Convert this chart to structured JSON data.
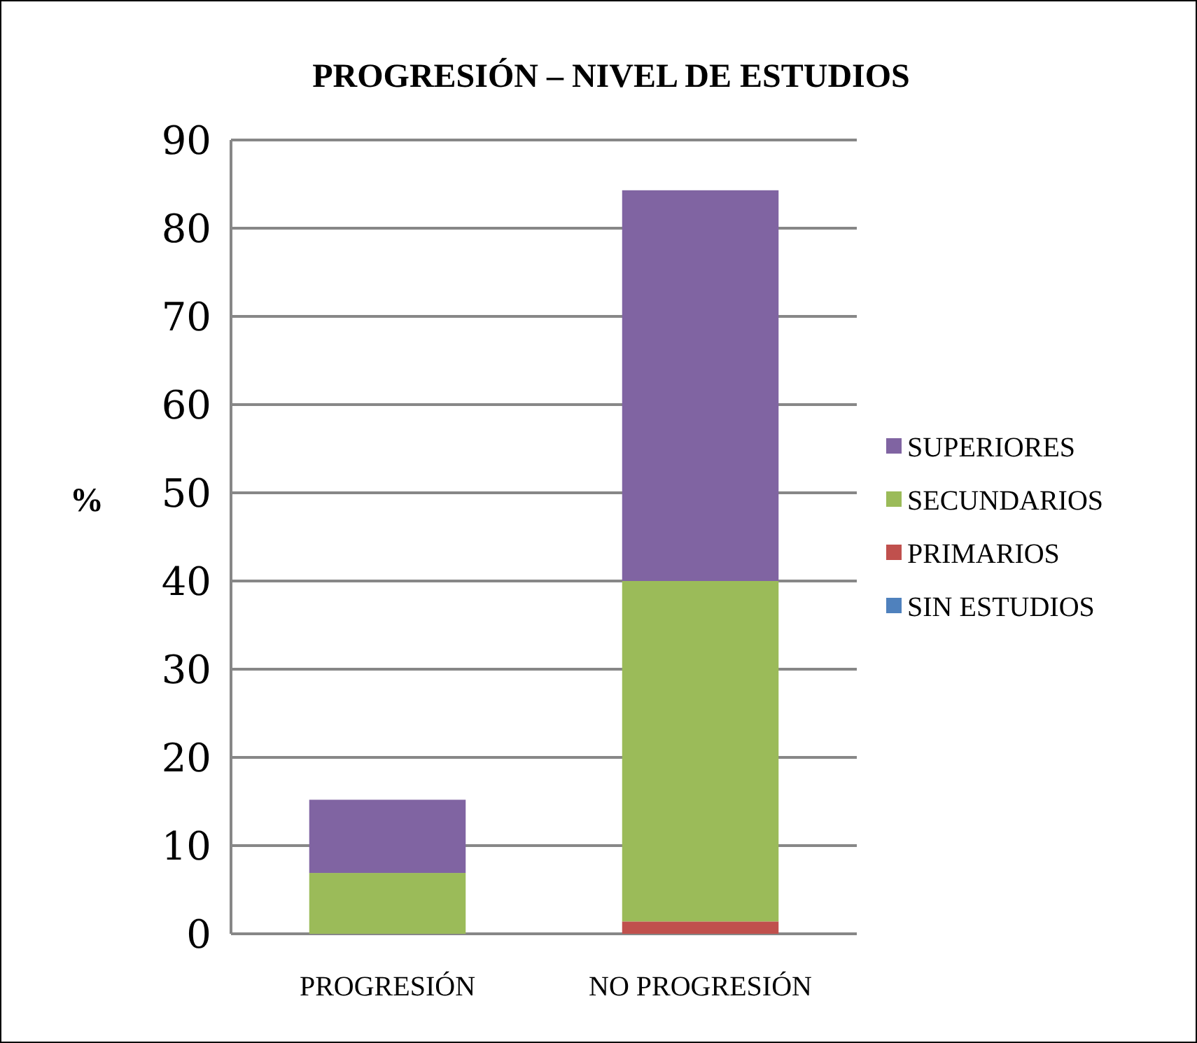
{
  "chart_data": {
    "type": "bar",
    "title": "PROGRESIÓN – NIVEL DE ESTUDIOS",
    "ylabel": "%",
    "categories": [
      "PROGRESIÓN",
      "NO PROGRESIÓN"
    ],
    "stacked": true,
    "series": [
      {
        "name": "SIN ESTUDIOS",
        "color": "#4f81bd",
        "values": [
          0,
          0
        ]
      },
      {
        "name": "PRIMARIOS",
        "color": "#c0504d",
        "values": [
          0,
          1.4
        ]
      },
      {
        "name": "SECUNDARIOS",
        "color": "#9bbb59",
        "values": [
          6.9,
          38.6
        ]
      },
      {
        "name": "SUPERIORES",
        "color": "#8064a2",
        "values": [
          8.3,
          44.3
        ]
      }
    ],
    "ylim": [
      0,
      90
    ],
    "yticks": [
      0,
      10,
      20,
      30,
      40,
      50,
      60,
      70,
      80,
      90
    ],
    "grid": "y",
    "legend": "right"
  }
}
